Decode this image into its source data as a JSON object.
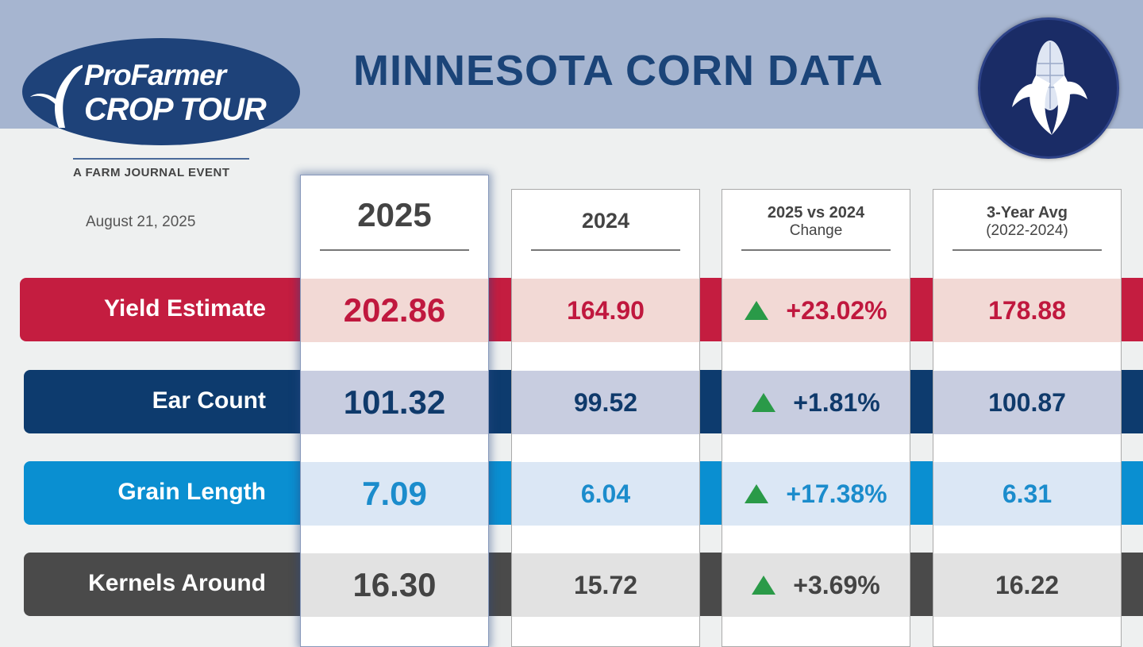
{
  "header": {
    "title": "MINNESOTA CORN DATA",
    "logo_line1": "ProFarmer",
    "logo_line2": "CROP TOUR",
    "tagline": "A FARM JOURNAL EVENT",
    "date": "August 21, 2025"
  },
  "colors": {
    "yield": "#c41d40",
    "ear": "#0d3b6e",
    "grain": "#0a8fd1",
    "kernels": "#4a4a4a",
    "up": "#2a9a48"
  },
  "chart_data": {
    "type": "table",
    "title": "MINNESOTA CORN DATA",
    "columns": [
      {
        "title": "2025"
      },
      {
        "title": "2024"
      },
      {
        "title": "2025 vs 2024",
        "sub": "Change"
      },
      {
        "title": "3-Year Avg",
        "sub": "(2022-2024)"
      }
    ],
    "rows": [
      {
        "label": "Yield Estimate",
        "v2025": "202.86",
        "v2024": "164.90",
        "change": "+23.02%",
        "avg": "178.88"
      },
      {
        "label": "Ear Count",
        "v2025": "101.32",
        "v2024": "99.52",
        "change": "+1.81%",
        "avg": "100.87"
      },
      {
        "label": "Grain Length",
        "v2025": "7.09",
        "v2024": "6.04",
        "change": "+17.38%",
        "avg": "6.31"
      },
      {
        "label": "Kernels Around",
        "v2025": "16.30",
        "v2024": "15.72",
        "change": "+3.69%",
        "avg": "16.22"
      }
    ]
  }
}
